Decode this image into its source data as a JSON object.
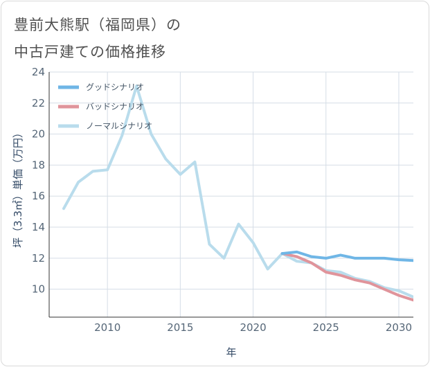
{
  "title_lines": [
    "豊前大熊駅（福岡県）の",
    "中古戸建ての価格推移"
  ],
  "chart_data": {
    "type": "line",
    "title": "豊前大熊駅（福岡県）の中古戸建ての価格推移",
    "xlabel": "年",
    "ylabel": "坪（3.3㎡）単価（万円）",
    "xlim": [
      2006,
      2031
    ],
    "ylim": [
      8.2,
      24
    ],
    "xticks": [
      2010,
      2015,
      2020,
      2025,
      2030
    ],
    "yticks": [
      10,
      12,
      14,
      16,
      18,
      20,
      22,
      24
    ],
    "grid": true,
    "legend_position": "top-left",
    "series": [
      {
        "name": "ノーマルシナリオ",
        "color": "#b9dcec",
        "x": [
          2007,
          2008,
          2009,
          2010,
          2011,
          2012,
          2013,
          2014,
          2015,
          2016,
          2017,
          2018,
          2019,
          2020,
          2021,
          2022,
          2023,
          2024,
          2025,
          2026,
          2027,
          2028,
          2029,
          2030,
          2031
        ],
        "values": [
          15.2,
          16.9,
          17.6,
          17.7,
          19.9,
          23.1,
          20.0,
          18.4,
          17.4,
          18.2,
          12.9,
          12.0,
          14.2,
          13.0,
          11.3,
          12.3,
          11.8,
          11.7,
          11.2,
          11.1,
          10.7,
          10.5,
          10.1,
          9.9,
          9.5
        ]
      },
      {
        "name": "バッドシナリオ",
        "color": "#e0949b",
        "x": [
          2022,
          2023,
          2024,
          2025,
          2026,
          2027,
          2028,
          2029,
          2030,
          2031
        ],
        "values": [
          12.3,
          12.1,
          11.7,
          11.1,
          10.9,
          10.6,
          10.4,
          10.0,
          9.6,
          9.3
        ]
      },
      {
        "name": "グッドシナリオ",
        "color": "#6fb6e6",
        "x": [
          2022,
          2023,
          2024,
          2025,
          2026,
          2027,
          2028,
          2029,
          2030,
          2031
        ],
        "values": [
          12.3,
          12.4,
          12.1,
          12.0,
          12.2,
          12.0,
          12.0,
          12.0,
          11.9,
          11.85
        ]
      }
    ],
    "legend": [
      "グッドシナリオ",
      "バッドシナリオ",
      "ノーマルシナリオ"
    ]
  }
}
